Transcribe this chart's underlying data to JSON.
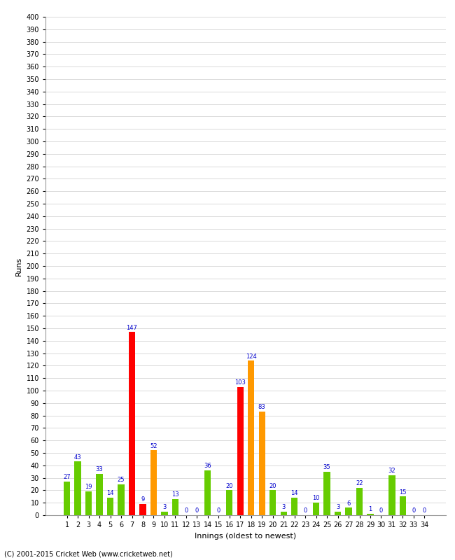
{
  "innings": [
    1,
    2,
    3,
    4,
    5,
    6,
    7,
    8,
    9,
    10,
    11,
    12,
    13,
    14,
    15,
    16,
    17,
    18,
    19,
    20,
    21,
    22,
    23,
    24,
    25,
    26,
    27,
    28,
    29,
    30,
    31,
    32,
    33,
    34
  ],
  "values": [
    27,
    43,
    19,
    33,
    14,
    25,
    147,
    9,
    52,
    3,
    13,
    0,
    0,
    36,
    0,
    20,
    103,
    124,
    83,
    20,
    3,
    14,
    0,
    10,
    35,
    3,
    6,
    22,
    1,
    0,
    32,
    15,
    0,
    0
  ],
  "colors": [
    "#66cc00",
    "#66cc00",
    "#66cc00",
    "#66cc00",
    "#66cc00",
    "#66cc00",
    "#ff0000",
    "#ff0000",
    "#ff9900",
    "#66cc00",
    "#66cc00",
    "#66cc00",
    "#66cc00",
    "#66cc00",
    "#66cc00",
    "#66cc00",
    "#ff0000",
    "#ff9900",
    "#ff9900",
    "#66cc00",
    "#66cc00",
    "#66cc00",
    "#66cc00",
    "#66cc00",
    "#66cc00",
    "#66cc00",
    "#66cc00",
    "#66cc00",
    "#66cc00",
    "#66cc00",
    "#66cc00",
    "#66cc00",
    "#66cc00",
    "#66cc00"
  ],
  "labels": [
    27,
    43,
    19,
    33,
    14,
    25,
    147,
    9,
    52,
    3,
    13,
    0,
    0,
    36,
    0,
    20,
    103,
    124,
    83,
    20,
    3,
    14,
    0,
    10,
    35,
    3,
    6,
    22,
    1,
    0,
    32,
    15,
    0,
    0
  ],
  "xlabel": "Innings (oldest to newest)",
  "ylabel": "Runs",
  "ylim": [
    0,
    400
  ],
  "ytick_step": 10,
  "footer": "(C) 2001-2015 Cricket Web (www.cricketweb.net)",
  "label_color": "#0000cc",
  "background_color": "#ffffff",
  "grid_color": "#cccccc",
  "bar_width": 0.6,
  "label_fontsize": 6,
  "tick_fontsize": 7,
  "ylabel_fontsize": 8,
  "xlabel_fontsize": 8
}
